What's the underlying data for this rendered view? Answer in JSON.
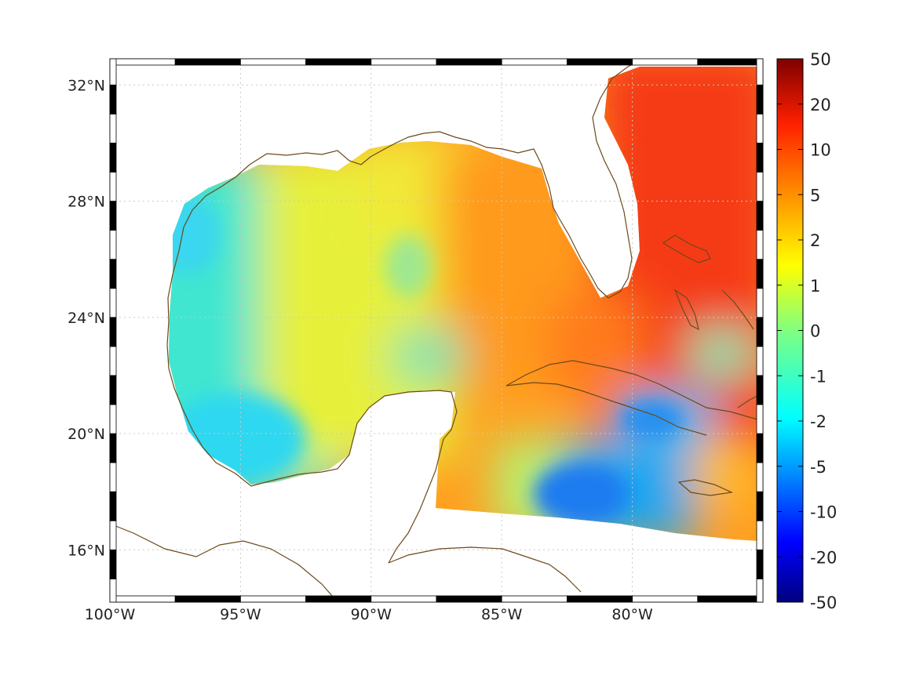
{
  "map": {
    "lon_range": [
      -100,
      -75
    ],
    "lat_range": [
      14.2,
      32.9
    ],
    "lon_labels": [
      "100°W",
      "95°W",
      "90°W",
      "85°W",
      "80°W"
    ],
    "lon_values": [
      -100,
      -95,
      -90,
      -85,
      -80
    ],
    "lat_labels": [
      "16°N",
      "20°N",
      "24°N",
      "28°N",
      "32°N"
    ],
    "lat_values": [
      16,
      20,
      24,
      28,
      32
    ],
    "grid": true,
    "grid_style": "dotted",
    "coastline_color": "#6b4a1a"
  },
  "colorbar": {
    "orientation": "vertical",
    "placement": "right",
    "colormap": "jet",
    "tick_labels": [
      "50",
      "20",
      "10",
      "5",
      "2",
      "1",
      "0",
      "-1",
      "-2",
      "-5",
      "-10",
      "-20",
      "-50"
    ],
    "tick_values": [
      50,
      20,
      10,
      5,
      2,
      1,
      0,
      -1,
      -2,
      -5,
      -10,
      -20,
      -50
    ]
  },
  "field_colors": {
    "west_gulf": "#3fe6d0",
    "central_gulf": "#e6f03a",
    "east_gulf": "#ff9a1a",
    "atlantic": "#f53a12",
    "caribbean_low": "#1fa6f0"
  }
}
